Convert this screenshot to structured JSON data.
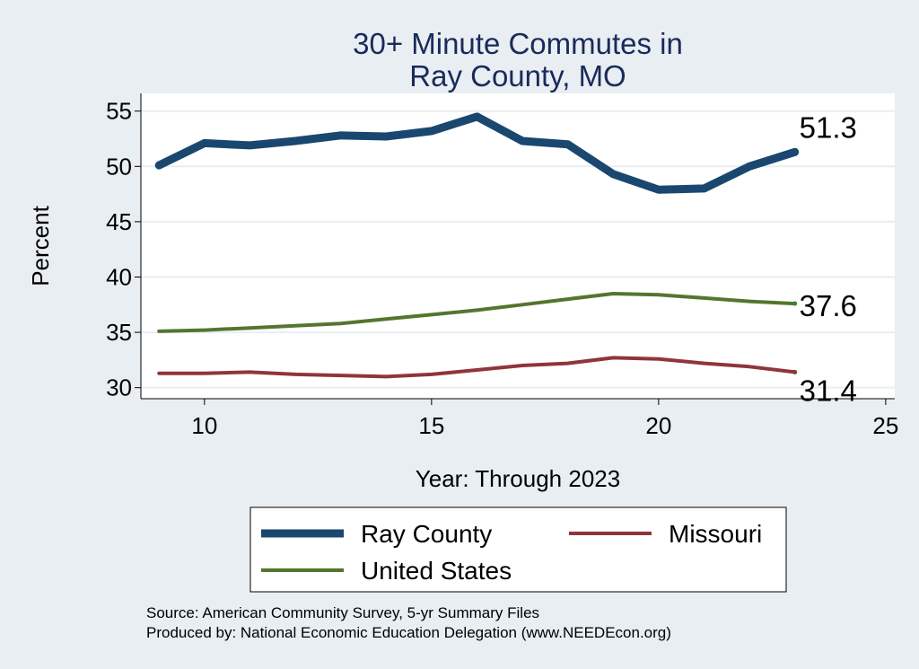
{
  "chart_data": {
    "type": "line",
    "title": "30+ Minute Commutes in",
    "title_line2": "Ray County, MO",
    "xlabel": "Year: Through 2023",
    "ylabel": "Percent",
    "xlim": [
      8.6,
      25.2
    ],
    "ylim": [
      29.0,
      56.6
    ],
    "x_ticks": [
      10,
      15,
      20,
      25
    ],
    "y_ticks": [
      30,
      35,
      40,
      45,
      50,
      55
    ],
    "grid": true,
    "legend_position": "bottom",
    "x": [
      9,
      10,
      11,
      12,
      13,
      14,
      15,
      16,
      17,
      18,
      19,
      20,
      21,
      22,
      23
    ],
    "series": [
      {
        "name": "Ray County",
        "color": "#1a476f",
        "weight": "thick",
        "values": [
          50.1,
          52.1,
          51.9,
          52.3,
          52.8,
          52.7,
          53.2,
          54.5,
          52.3,
          52.0,
          49.3,
          47.9,
          48.0,
          50.0,
          51.3
        ],
        "end_label": "51.3"
      },
      {
        "name": "Missouri",
        "color": "#90353b",
        "weight": "medium",
        "values": [
          31.3,
          31.3,
          31.4,
          31.2,
          31.1,
          31.0,
          31.2,
          31.6,
          32.0,
          32.2,
          32.7,
          32.6,
          32.2,
          31.9,
          31.4
        ],
        "end_label": "31.4"
      },
      {
        "name": "United States",
        "color": "#55752f",
        "weight": "medium",
        "values": [
          35.1,
          35.2,
          35.4,
          35.6,
          35.8,
          36.2,
          36.6,
          37.0,
          37.5,
          38.0,
          38.5,
          38.4,
          38.1,
          37.8,
          37.6
        ],
        "end_label": "37.6"
      }
    ],
    "legend": [
      {
        "name": "Ray County",
        "color": "#1a476f"
      },
      {
        "name": "Missouri",
        "color": "#90353b"
      },
      {
        "name": "United States",
        "color": "#55752f"
      }
    ],
    "source_line": "Source: American Community Survey, 5-yr Summary Files",
    "produced_line": "Produced by: National Economic Education Delegation (www.NEEDEcon.org)"
  },
  "colors": {
    "background": "#e8eef2",
    "plot_background": "#ffffff",
    "title": "#1a2a5a",
    "gridline": "#e8eef2"
  }
}
